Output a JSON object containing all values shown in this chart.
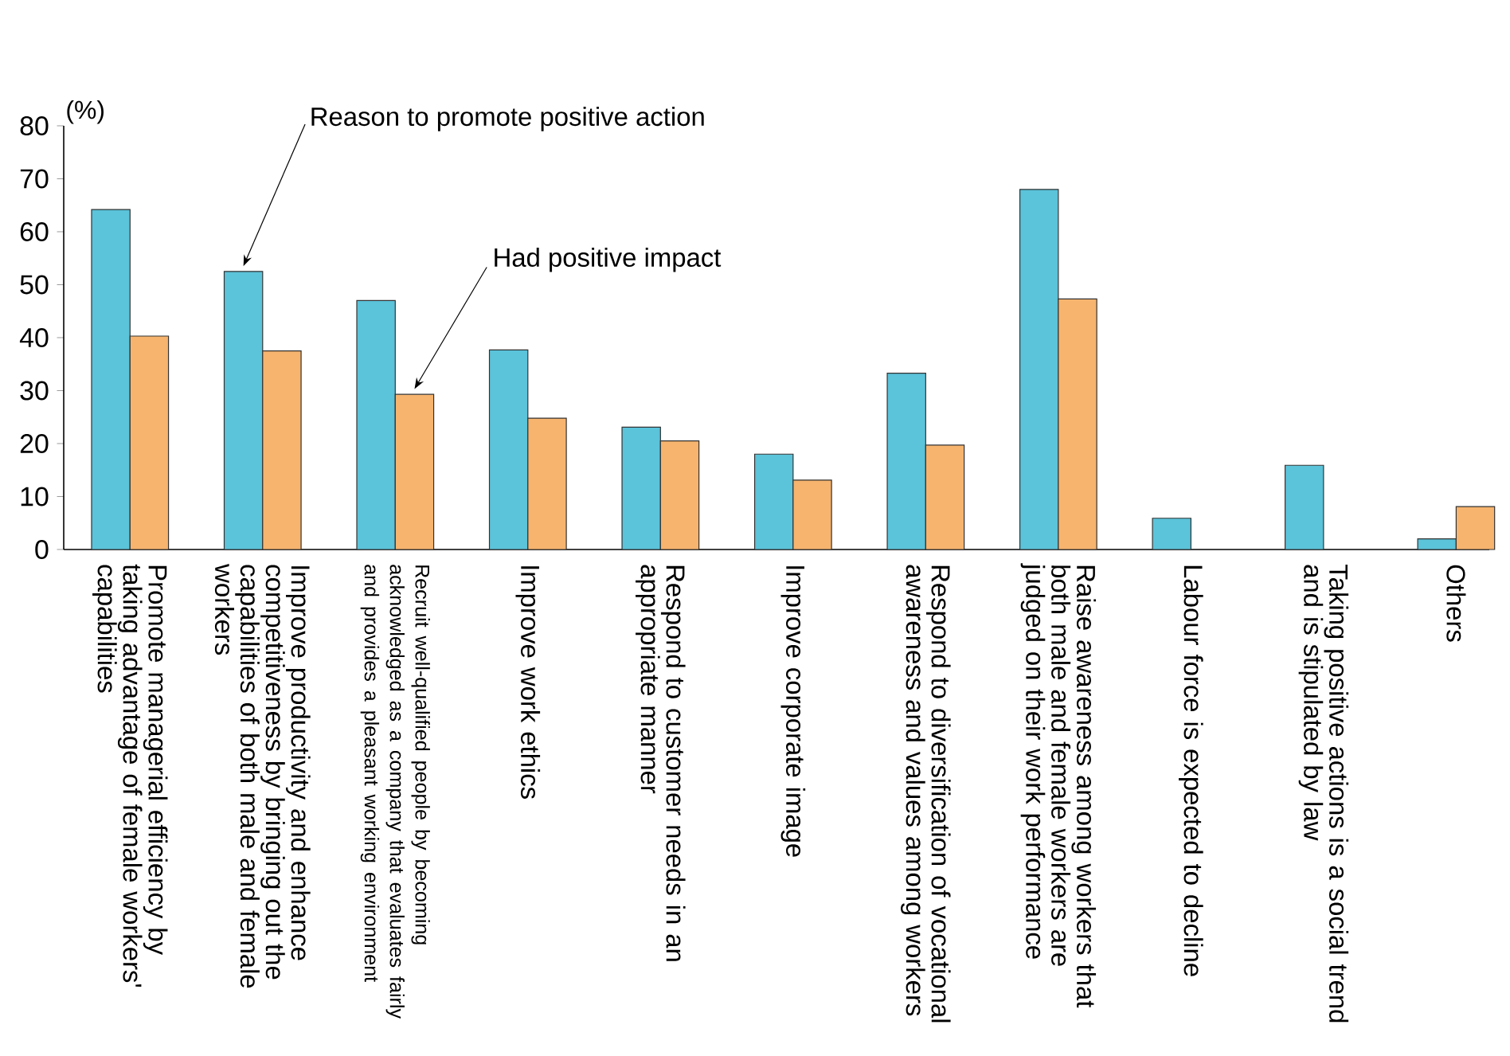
{
  "chart_data": {
    "type": "bar",
    "ylabel": "(%)",
    "categories": [
      "Promote managerial efficiency by taking advantage of female workers' capabilities",
      "Improve productivity and enhance competitiveness by bringing out the capabilities of both male and female workers",
      "Recruit well-qualified people by becoming acknowledged as a company that evaluates fairly and provides a pleasant working environment",
      "Improve work ethics",
      "Respond to customer needs in an appropriate manner",
      "Improve corporate image",
      "Respond to diversification of vocational awareness and values among workers",
      "Raise awareness among workers that both male and female workers are judged on their work performance",
      "Labour force is expected to decline",
      "Taking positive actions is a social trend and is stipulated by law",
      "Others"
    ],
    "series": [
      {
        "name": "Reason to promote positive action",
        "color": "#5bc3da",
        "values": [
          64.2,
          52.5,
          47,
          37.7,
          23.1,
          18,
          33.3,
          68,
          5.9,
          15.9,
          2
        ]
      },
      {
        "name": "Had positive impact",
        "color": "#f6b46e",
        "values": [
          40.3,
          37.5,
          29.3,
          24.8,
          20.5,
          13.1,
          19.7,
          47.3,
          null,
          null,
          8.1
        ]
      }
    ],
    "ylim": [
      0,
      80
    ],
    "yticks": [
      0,
      10,
      20,
      30,
      40,
      50,
      60,
      70,
      80
    ],
    "grid": false,
    "legend": false
  }
}
